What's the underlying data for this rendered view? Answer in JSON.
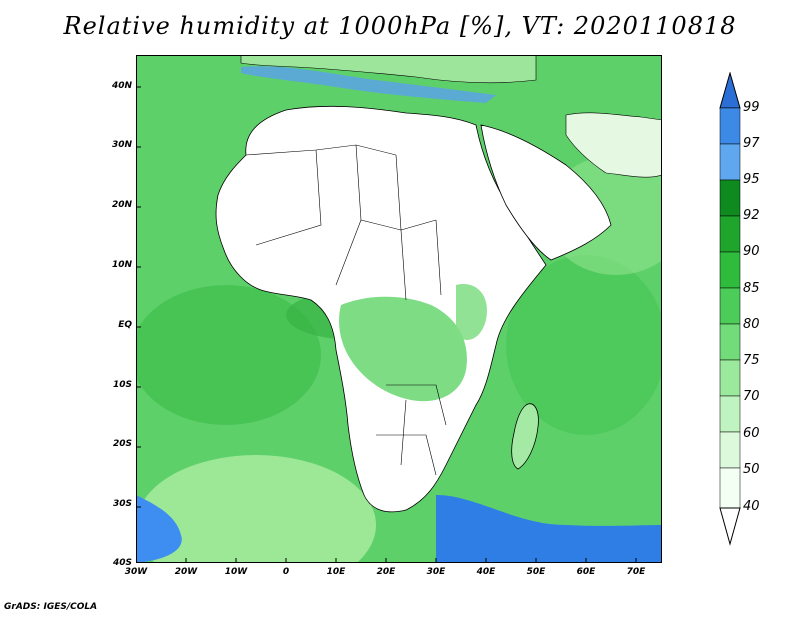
{
  "title": "Relative humidity at 1000hPa [%], VT: 2020110818",
  "footer": "GrADS: IGES/COLA",
  "map": {
    "lat_labels": [
      "40N",
      "30N",
      "20N",
      "10N",
      "EQ",
      "10S",
      "20S",
      "30S",
      "40S"
    ],
    "lon_labels": [
      "30W",
      "20W",
      "10W",
      "0",
      "10E",
      "20E",
      "30E",
      "40E",
      "50E",
      "60E",
      "70E"
    ],
    "extent": {
      "lon_min": -30,
      "lon_max": 75,
      "lat_min": -40,
      "lat_max": 45
    },
    "layer": "Relative humidity",
    "level": "1000hPa",
    "units": "%",
    "valid_time": "2020110818"
  },
  "colorbar": {
    "levels": [
      "99",
      "97",
      "95",
      "92",
      "90",
      "85",
      "80",
      "75",
      "70",
      "60",
      "50",
      "40"
    ],
    "colors": [
      "#2b6fd6",
      "#3c8ae6",
      "#5fa8f0",
      "#0f8a1e",
      "#1fa42c",
      "#2fbb3c",
      "#4ccc58",
      "#73dc7a",
      "#9ae99c",
      "#bff3c0",
      "#ddf9dc",
      "#f4fff3"
    ]
  }
}
